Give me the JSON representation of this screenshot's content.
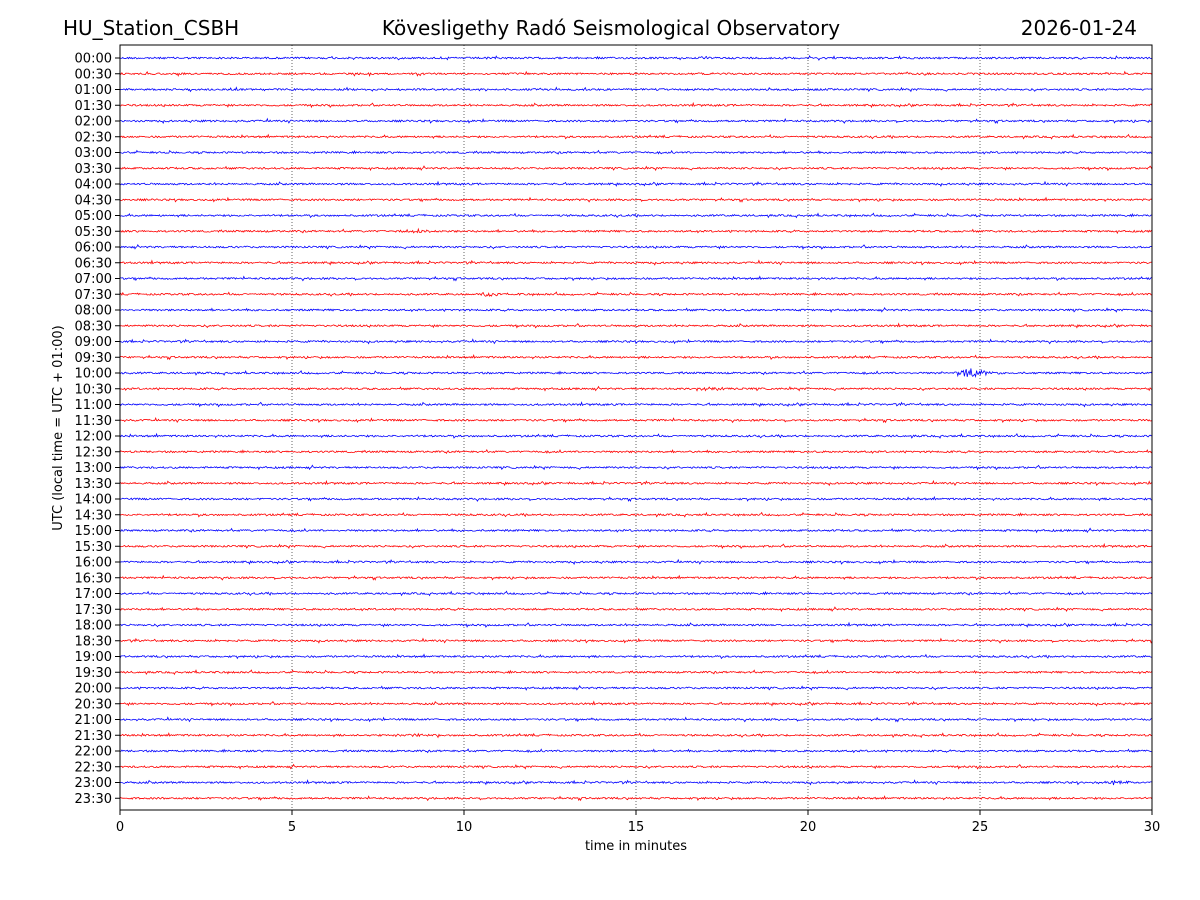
{
  "header": {
    "station": "HU_Station_CSBH",
    "observatory": "Kövesligethy Radó Seismological Observatory",
    "date": "2026-01-24"
  },
  "chart_data": {
    "type": "line",
    "xlabel": "time in minutes",
    "ylabel": "UTC (local time = UTC + 01:00)",
    "xlim": [
      0,
      30
    ],
    "x_ticks": [
      "0",
      "5",
      "10",
      "15",
      "20",
      "25",
      "30"
    ],
    "x_tick_values": [
      0,
      5,
      10,
      15,
      20,
      25,
      30
    ],
    "grid": "vertical dotted lines at 5-minute ticks",
    "trace_colors": [
      "#0000ff",
      "#ff0000"
    ],
    "rows": [
      "00:00",
      "00:30",
      "01:00",
      "01:30",
      "02:00",
      "02:30",
      "03:00",
      "03:30",
      "04:00",
      "04:30",
      "05:00",
      "05:30",
      "06:00",
      "06:30",
      "07:00",
      "07:30",
      "08:00",
      "08:30",
      "09:00",
      "09:30",
      "10:00",
      "10:30",
      "11:00",
      "11:30",
      "12:00",
      "12:30",
      "13:00",
      "13:30",
      "14:00",
      "14:30",
      "15:00",
      "15:30",
      "16:00",
      "16:30",
      "17:00",
      "17:30",
      "18:00",
      "18:30",
      "19:00",
      "19:30",
      "20:00",
      "20:30",
      "21:00",
      "21:30",
      "22:00",
      "22:30",
      "23:00",
      "23:30"
    ],
    "events": [
      {
        "row": "10:00",
        "minute": 24.7,
        "amplitude": 3.0
      },
      {
        "row": "21:30",
        "minute": 8.5,
        "amplitude": 1.0
      },
      {
        "row": "10:30",
        "minute": 17.2,
        "amplitude": 1.0
      },
      {
        "row": "07:30",
        "minute": 10.7,
        "amplitude": 0.9
      },
      {
        "row": "05:30",
        "minute": 8.7,
        "amplitude": 0.8
      },
      {
        "row": "23:00",
        "minute": 28.9,
        "amplitude": 0.9
      }
    ]
  }
}
